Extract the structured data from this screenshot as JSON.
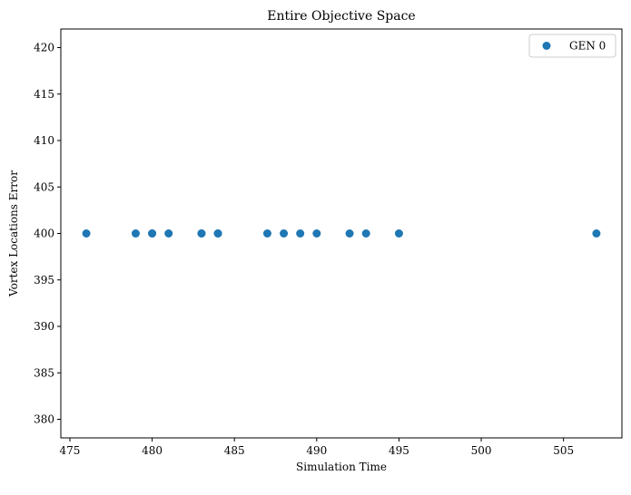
{
  "chart_data": {
    "type": "scatter",
    "title": "Entire Objective Space",
    "xlabel": "Simulation Time",
    "ylabel": "Vortex Locations Error",
    "xlim": [
      474.45,
      508.55
    ],
    "ylim": [
      378,
      422
    ],
    "xticks": [
      475,
      480,
      485,
      490,
      495,
      500,
      505
    ],
    "yticks": [
      380,
      385,
      390,
      395,
      400,
      405,
      410,
      415,
      420
    ],
    "grid": false,
    "legend_position": "top-right",
    "series": [
      {
        "name": "GEN 0",
        "color": "#1f77b4",
        "points": [
          {
            "x": 476,
            "y": 400
          },
          {
            "x": 479,
            "y": 400
          },
          {
            "x": 480,
            "y": 400
          },
          {
            "x": 480,
            "y": 400
          },
          {
            "x": 481,
            "y": 400
          },
          {
            "x": 483,
            "y": 400
          },
          {
            "x": 483,
            "y": 400
          },
          {
            "x": 484,
            "y": 400
          },
          {
            "x": 484,
            "y": 400
          },
          {
            "x": 487,
            "y": 400
          },
          {
            "x": 488,
            "y": 400
          },
          {
            "x": 489,
            "y": 400
          },
          {
            "x": 490,
            "y": 400
          },
          {
            "x": 492,
            "y": 400
          },
          {
            "x": 493,
            "y": 400
          },
          {
            "x": 495,
            "y": 400
          },
          {
            "x": 507,
            "y": 400
          }
        ]
      }
    ]
  }
}
